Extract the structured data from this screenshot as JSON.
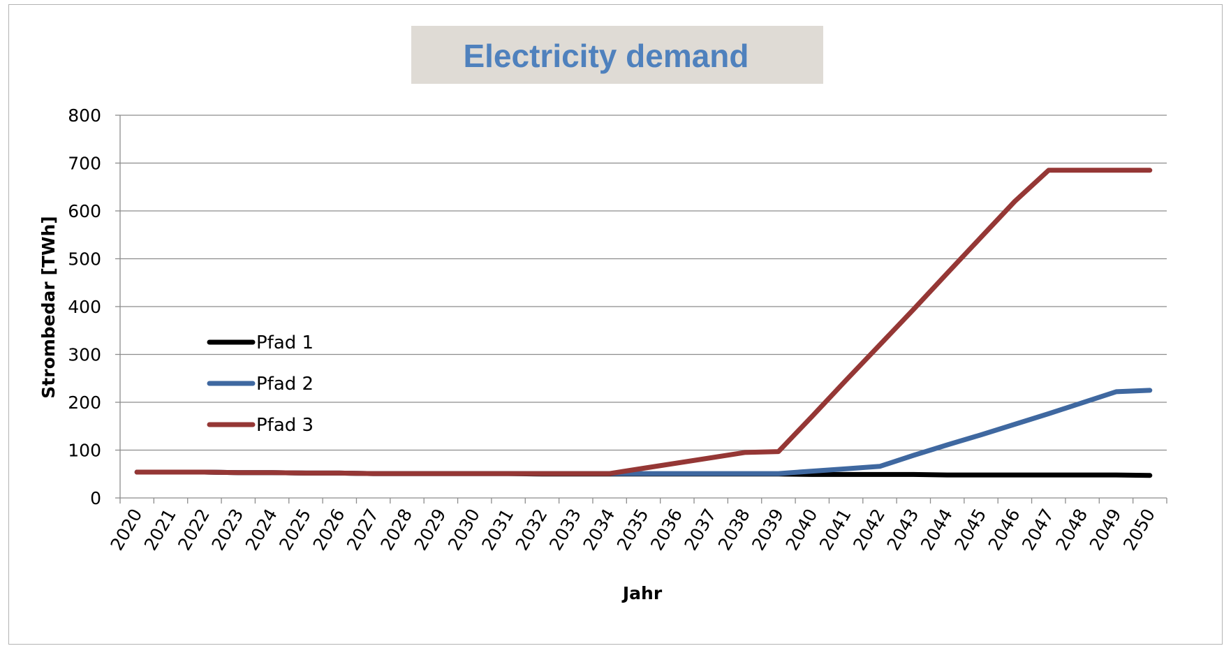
{
  "chart_data": {
    "type": "line",
    "title": "Electricity demand",
    "xlabel": "Jahr",
    "ylabel": "Strombedar  [TWh]",
    "ylim": [
      0,
      800
    ],
    "yticks": [
      0,
      100,
      200,
      300,
      400,
      500,
      600,
      700,
      800
    ],
    "grid": true,
    "legend_position": "left",
    "categories": [
      "2020",
      "2021",
      "2022",
      "2023",
      "2024",
      "2025",
      "2026",
      "2027",
      "2028",
      "2029",
      "2030",
      "2031",
      "2032",
      "2033",
      "2034",
      "2035",
      "2036",
      "2037",
      "2038",
      "2039",
      "2040",
      "2041",
      "2042",
      "2043",
      "2044",
      "2045",
      "2046",
      "2047",
      "2048",
      "2049",
      "2050"
    ],
    "series": [
      {
        "name": "Pfad 1",
        "color": "#000000",
        "values": [
          54,
          54,
          54,
          53,
          53,
          52,
          52,
          51,
          51,
          51,
          51,
          51,
          50,
          50,
          50,
          50,
          50,
          50,
          50,
          50,
          49,
          49,
          49,
          49,
          48,
          48,
          48,
          48,
          48,
          48,
          47
        ]
      },
      {
        "name": "Pfad 2",
        "color": "#3f68a0",
        "values": [
          54,
          54,
          54,
          53,
          53,
          52,
          52,
          51,
          51,
          51,
          51,
          51,
          51,
          51,
          51,
          51,
          51,
          51,
          51,
          51,
          56,
          61,
          66,
          89,
          111,
          132,
          154,
          176,
          199,
          222,
          225
        ]
      },
      {
        "name": "Pfad 3",
        "color": "#953735",
        "values": [
          54,
          54,
          54,
          53,
          53,
          52,
          52,
          51,
          51,
          51,
          51,
          51,
          51,
          51,
          51,
          62,
          73,
          84,
          95,
          97,
          171,
          246,
          320,
          394,
          470,
          545,
          620,
          685,
          685,
          685,
          685
        ]
      }
    ]
  }
}
